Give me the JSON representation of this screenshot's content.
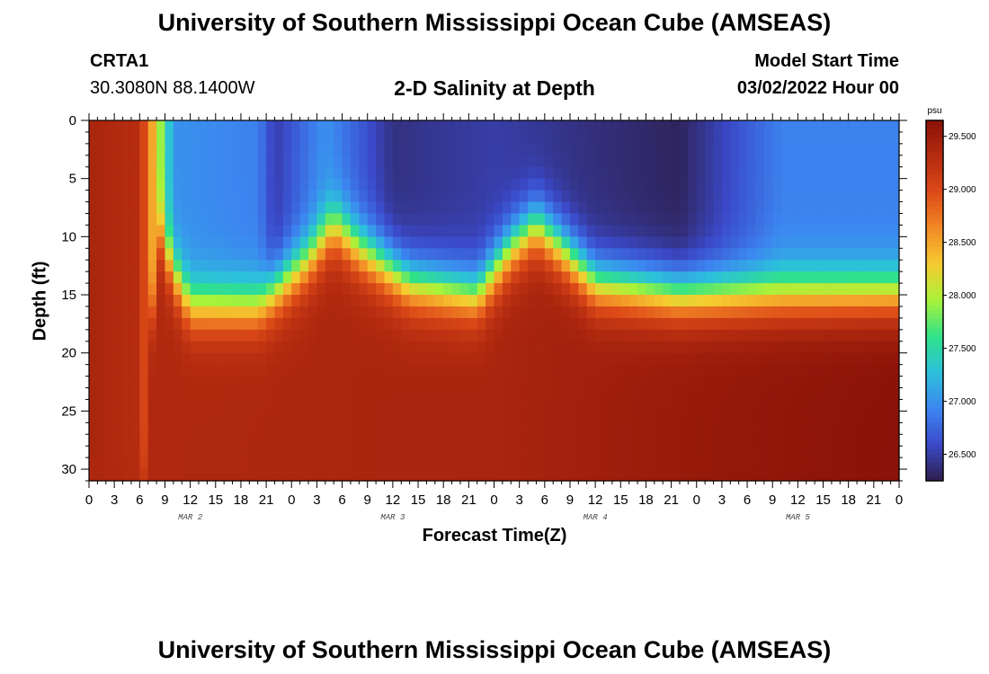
{
  "header": {
    "title": "University of Southern Mississippi Ocean Cube (AMSEAS)",
    "station": "CRTA1",
    "coords": "30.3080N  88.1400W",
    "subtitle": "2-D Salinity at Depth",
    "model_start_label": "Model Start Time",
    "model_start_value": "03/02/2022 Hour 00"
  },
  "footer": {
    "title": "University of Southern Mississippi Ocean Cube (AMSEAS)"
  },
  "chart_data": {
    "type": "heatmap",
    "title": "2-D Salinity at Depth",
    "xlabel": "Forecast Time(Z)",
    "ylabel": "Depth (ft)",
    "xlim_hours": [
      0,
      96
    ],
    "ylim": [
      0,
      31
    ],
    "y_ticks": [
      0,
      5,
      10,
      15,
      20,
      25,
      30
    ],
    "x_tick_labels": [
      "0",
      "3",
      "6",
      "9",
      "12",
      "15",
      "18",
      "21",
      "0",
      "3",
      "6",
      "9",
      "12",
      "15",
      "18",
      "21",
      "0",
      "3",
      "6",
      "9",
      "12",
      "15",
      "18",
      "21",
      "0",
      "3",
      "6",
      "9",
      "12",
      "15",
      "18",
      "21",
      "0"
    ],
    "day_labels": [
      {
        "label": "MAR 2",
        "hour": 12
      },
      {
        "label": "MAR 3",
        "hour": 36
      },
      {
        "label": "MAR 4",
        "hour": 60
      },
      {
        "label": "MAR 5",
        "hour": 84
      }
    ],
    "colorbar": {
      "unit": "psu",
      "range": [
        26.25,
        29.65
      ],
      "ticks": [
        "29.500",
        "29.000",
        "28.500",
        "28.000",
        "27.500",
        "27.000",
        "26.500"
      ],
      "tick_values": [
        29.5,
        29.0,
        28.5,
        28.0,
        27.5,
        27.0,
        26.5
      ],
      "colormap": [
        "#2d1e4a",
        "#3b49c8",
        "#3c86f0",
        "#2cc0dc",
        "#2fe28a",
        "#a8f23a",
        "#f5cc30",
        "#f28a26",
        "#dd4a18",
        "#b52c10",
        "#8a1208"
      ]
    },
    "halocline_depth_ft": [
      {
        "hour": 0,
        "depth": 31
      },
      {
        "hour": 6.5,
        "depth": 31
      },
      {
        "hour": 8,
        "depth": 9
      },
      {
        "hour": 10,
        "depth": 13
      },
      {
        "hour": 12,
        "depth": 16
      },
      {
        "hour": 20,
        "depth": 16
      },
      {
        "hour": 26,
        "depth": 12
      },
      {
        "hour": 29,
        "depth": 9
      },
      {
        "hour": 32,
        "depth": 11
      },
      {
        "hour": 38,
        "depth": 14
      },
      {
        "hour": 46,
        "depth": 15
      },
      {
        "hour": 50,
        "depth": 11
      },
      {
        "hour": 53,
        "depth": 9
      },
      {
        "hour": 56,
        "depth": 11
      },
      {
        "hour": 60,
        "depth": 14
      },
      {
        "hour": 70,
        "depth": 15
      },
      {
        "hour": 96,
        "depth": 15
      }
    ],
    "surface_salinity_psu": [
      {
        "hour": 0,
        "value": 29.4
      },
      {
        "hour": 6,
        "value": 29.3
      },
      {
        "hour": 8,
        "value": 28.2
      },
      {
        "hour": 10,
        "value": 27.0
      },
      {
        "hour": 20,
        "value": 26.9
      },
      {
        "hour": 22,
        "value": 26.5
      },
      {
        "hour": 28,
        "value": 27.0
      },
      {
        "hour": 36,
        "value": 26.4
      },
      {
        "hour": 48,
        "value": 26.5
      },
      {
        "hour": 58,
        "value": 26.4
      },
      {
        "hour": 70,
        "value": 26.3
      },
      {
        "hour": 74,
        "value": 26.5
      },
      {
        "hour": 82,
        "value": 26.9
      },
      {
        "hour": 96,
        "value": 26.9
      }
    ],
    "bottom_salinity_psu": [
      {
        "hour": 0,
        "value": 29.35
      },
      {
        "hour": 48,
        "value": 29.4
      },
      {
        "hour": 72,
        "value": 29.55
      },
      {
        "hour": 96,
        "value": 29.65
      }
    ]
  }
}
